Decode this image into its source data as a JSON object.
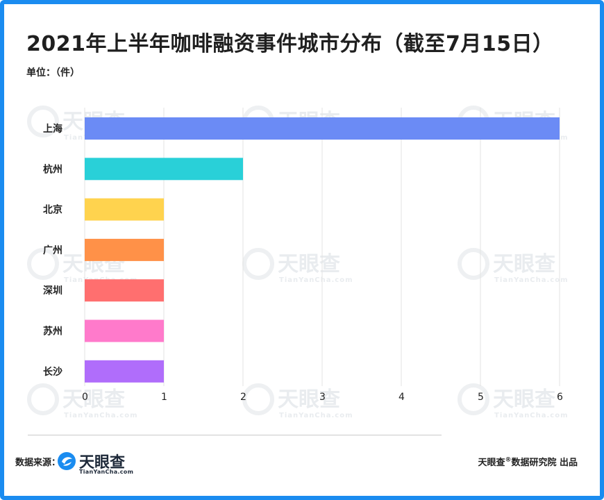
{
  "header": {
    "title": "2021年上半年咖啡融资事件城市分布（截至7月15日）",
    "unit": "单位：（件）"
  },
  "chart_data": {
    "type": "bar",
    "orientation": "horizontal",
    "title": "2021年上半年咖啡融资事件城市分布（截至7月15日）",
    "ylabel": "单位：（件）",
    "categories": [
      "上海",
      "杭州",
      "北京",
      "广州",
      "深圳",
      "苏州",
      "长沙"
    ],
    "values": [
      6,
      2,
      1,
      1,
      1,
      1,
      1
    ],
    "bar_colors": [
      "#6b8bf5",
      "#29d0d8",
      "#ffd34e",
      "#ff9148",
      "#ff6f6f",
      "#ff7acb",
      "#b06dfb"
    ],
    "x_ticks": [
      0,
      1,
      2,
      3,
      4,
      5,
      6
    ],
    "xlim": [
      0,
      6
    ],
    "grid": "vertical",
    "legend": "none"
  },
  "watermark": {
    "name": "天眼查",
    "sub": "TianYanCha.com"
  },
  "footer": {
    "source_label": "数据来源：",
    "logo_name": "天眼查",
    "logo_sub": "TianYanCha.com",
    "publisher_brand": "天眼查",
    "publisher_rest": "数据研究院 出品"
  },
  "colors": {
    "frame": "#1a8cf0",
    "grid": "#e3e3e3",
    "logo_blue": "#1a8cf0"
  }
}
